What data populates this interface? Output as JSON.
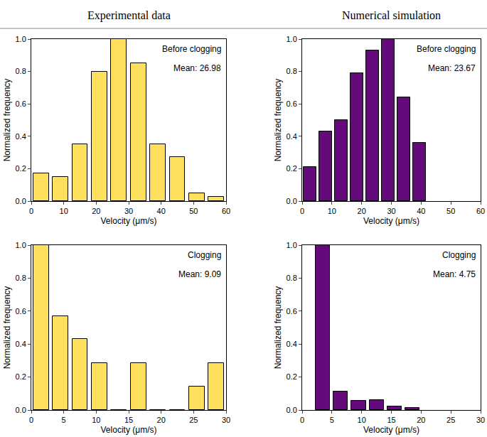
{
  "headers": [
    "Experimental data",
    "Numerical simulation"
  ],
  "chart_data": [
    {
      "type": "bar",
      "annotations": [
        "Before clogging",
        "Mean: 26.98"
      ],
      "bins": [
        0,
        6,
        12,
        18,
        24,
        30,
        36,
        42,
        48,
        54,
        60
      ],
      "values": [
        0.17,
        0.15,
        0.35,
        0.8,
        1.0,
        0.85,
        0.35,
        0.27,
        0.05,
        0.025
      ],
      "color": "#FFDF5E",
      "x_label": "Velocity (μm/s)",
      "y_label": "Normalized frequency",
      "xlim": [
        0,
        60
      ],
      "xticks": [
        0,
        10,
        20,
        30,
        40,
        50,
        60
      ],
      "ylim": [
        0,
        1
      ],
      "yticks": [
        {
          "value": 0,
          "label": "0.0"
        },
        {
          "value": 0.2,
          "label": "0.2"
        },
        {
          "value": 0.4,
          "label": "0.4"
        },
        {
          "value": 0.6,
          "label": "0.6"
        },
        {
          "value": 0.8,
          "label": "0.8"
        },
        {
          "value": 1,
          "label": "1.0"
        }
      ]
    },
    {
      "type": "bar",
      "annotations": [
        "Before clogging",
        "Mean: 23.67"
      ],
      "bins": [
        0,
        5.25,
        10.5,
        15.75,
        21,
        26.25,
        31.5,
        36.75,
        42
      ],
      "values": [
        0.21,
        0.43,
        0.5,
        0.79,
        0.93,
        1.0,
        0.64,
        0.36
      ],
      "color": "#650A7D",
      "x_label": "Velocity (μm/s)",
      "y_label": "Normalized frequency",
      "xlim": [
        0,
        60
      ],
      "xticks": [
        0,
        10,
        20,
        30,
        40,
        50,
        60
      ],
      "ylim": [
        0,
        1
      ],
      "yticks": [
        {
          "value": 0,
          "label": "0.0"
        },
        {
          "value": 0.2,
          "label": "0.2"
        },
        {
          "value": 0.4,
          "label": "0.4"
        },
        {
          "value": 0.6,
          "label": "0.6"
        },
        {
          "value": 0.8,
          "label": "0.8"
        },
        {
          "value": 1,
          "label": "1.0"
        }
      ]
    },
    {
      "type": "bar",
      "annotations": [
        "Clogging",
        "Mean: 9.09"
      ],
      "bins": [
        0,
        3,
        6,
        9,
        12,
        15,
        18,
        21,
        24,
        27,
        30
      ],
      "values": [
        1.0,
        0.571,
        0.429,
        0.286,
        0,
        0.286,
        0,
        0,
        0.143,
        0.286
      ],
      "color": "#FFDF5E",
      "x_label": "Velocity (μm/s)",
      "y_label": "Normalized frequency",
      "xlim": [
        0,
        30
      ],
      "xticks": [
        0,
        5,
        10,
        15,
        20,
        25,
        30
      ],
      "ylim": [
        0,
        1
      ],
      "yticks": [
        {
          "value": 0,
          "label": "0.0"
        },
        {
          "value": 0.2,
          "label": "0.2"
        },
        {
          "value": 0.4,
          "label": "0.4"
        },
        {
          "value": 0.6,
          "label": "0.6"
        },
        {
          "value": 0.8,
          "label": "0.8"
        },
        {
          "value": 1,
          "label": "1.0"
        }
      ]
    },
    {
      "type": "bar",
      "annotations": [
        "Clogging",
        "Mean: 4.75"
      ],
      "bins": [
        2,
        5,
        8,
        11,
        14,
        17,
        20
      ],
      "values": [
        1.0,
        0.11,
        0.055,
        0.06,
        0.02,
        0.015
      ],
      "color": "#650A7D",
      "x_label": "Velocity (μm/s)",
      "y_label": "Normalized frequency",
      "xlim": [
        0,
        30
      ],
      "xticks": [
        0,
        5,
        10,
        15,
        20,
        25,
        30
      ],
      "ylim": [
        0,
        1
      ],
      "yticks": [
        {
          "value": 0,
          "label": "0.0"
        },
        {
          "value": 0.2,
          "label": "0.2"
        },
        {
          "value": 0.4,
          "label": "0.4"
        },
        {
          "value": 0.6,
          "label": "0.6"
        },
        {
          "value": 0.8,
          "label": "0.8"
        },
        {
          "value": 1,
          "label": "1.0"
        }
      ]
    }
  ]
}
